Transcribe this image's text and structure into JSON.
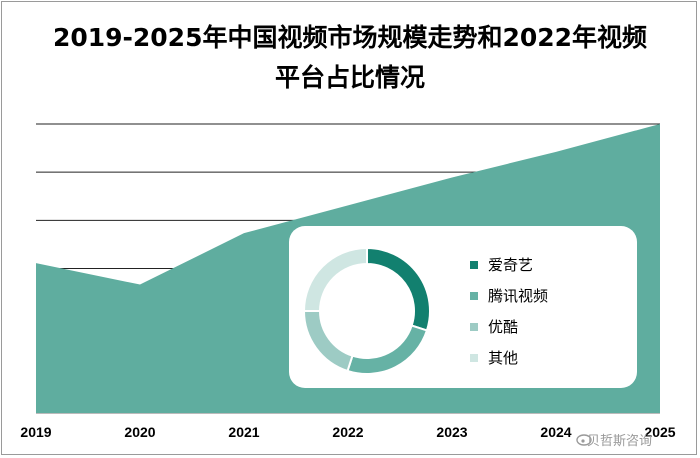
{
  "title_line1": "2019-2025年中国视频市场规模走势和2022年视频",
  "title_line2": "平台占比情况",
  "chart_data": [
    {
      "type": "area",
      "x": [
        "2019",
        "2020",
        "2021",
        "2022",
        "2023",
        "2024",
        "2025"
      ],
      "values": [
        3.5,
        3.0,
        4.2,
        4.85,
        5.5,
        6.1,
        6.75
      ],
      "ylim": [
        0,
        6.75
      ],
      "grid": true,
      "color": "#5fad9f"
    },
    {
      "type": "pie",
      "style": "donut",
      "categories": [
        "爱奇艺",
        "腾讯视频",
        "优酷",
        "其他"
      ],
      "values": [
        30,
        25,
        20,
        25
      ],
      "colors": [
        "#12806f",
        "#66b2a5",
        "#9dcbc4",
        "#cfe6e2"
      ],
      "legend_position": "right"
    }
  ],
  "watermark": "贝哲斯咨询"
}
